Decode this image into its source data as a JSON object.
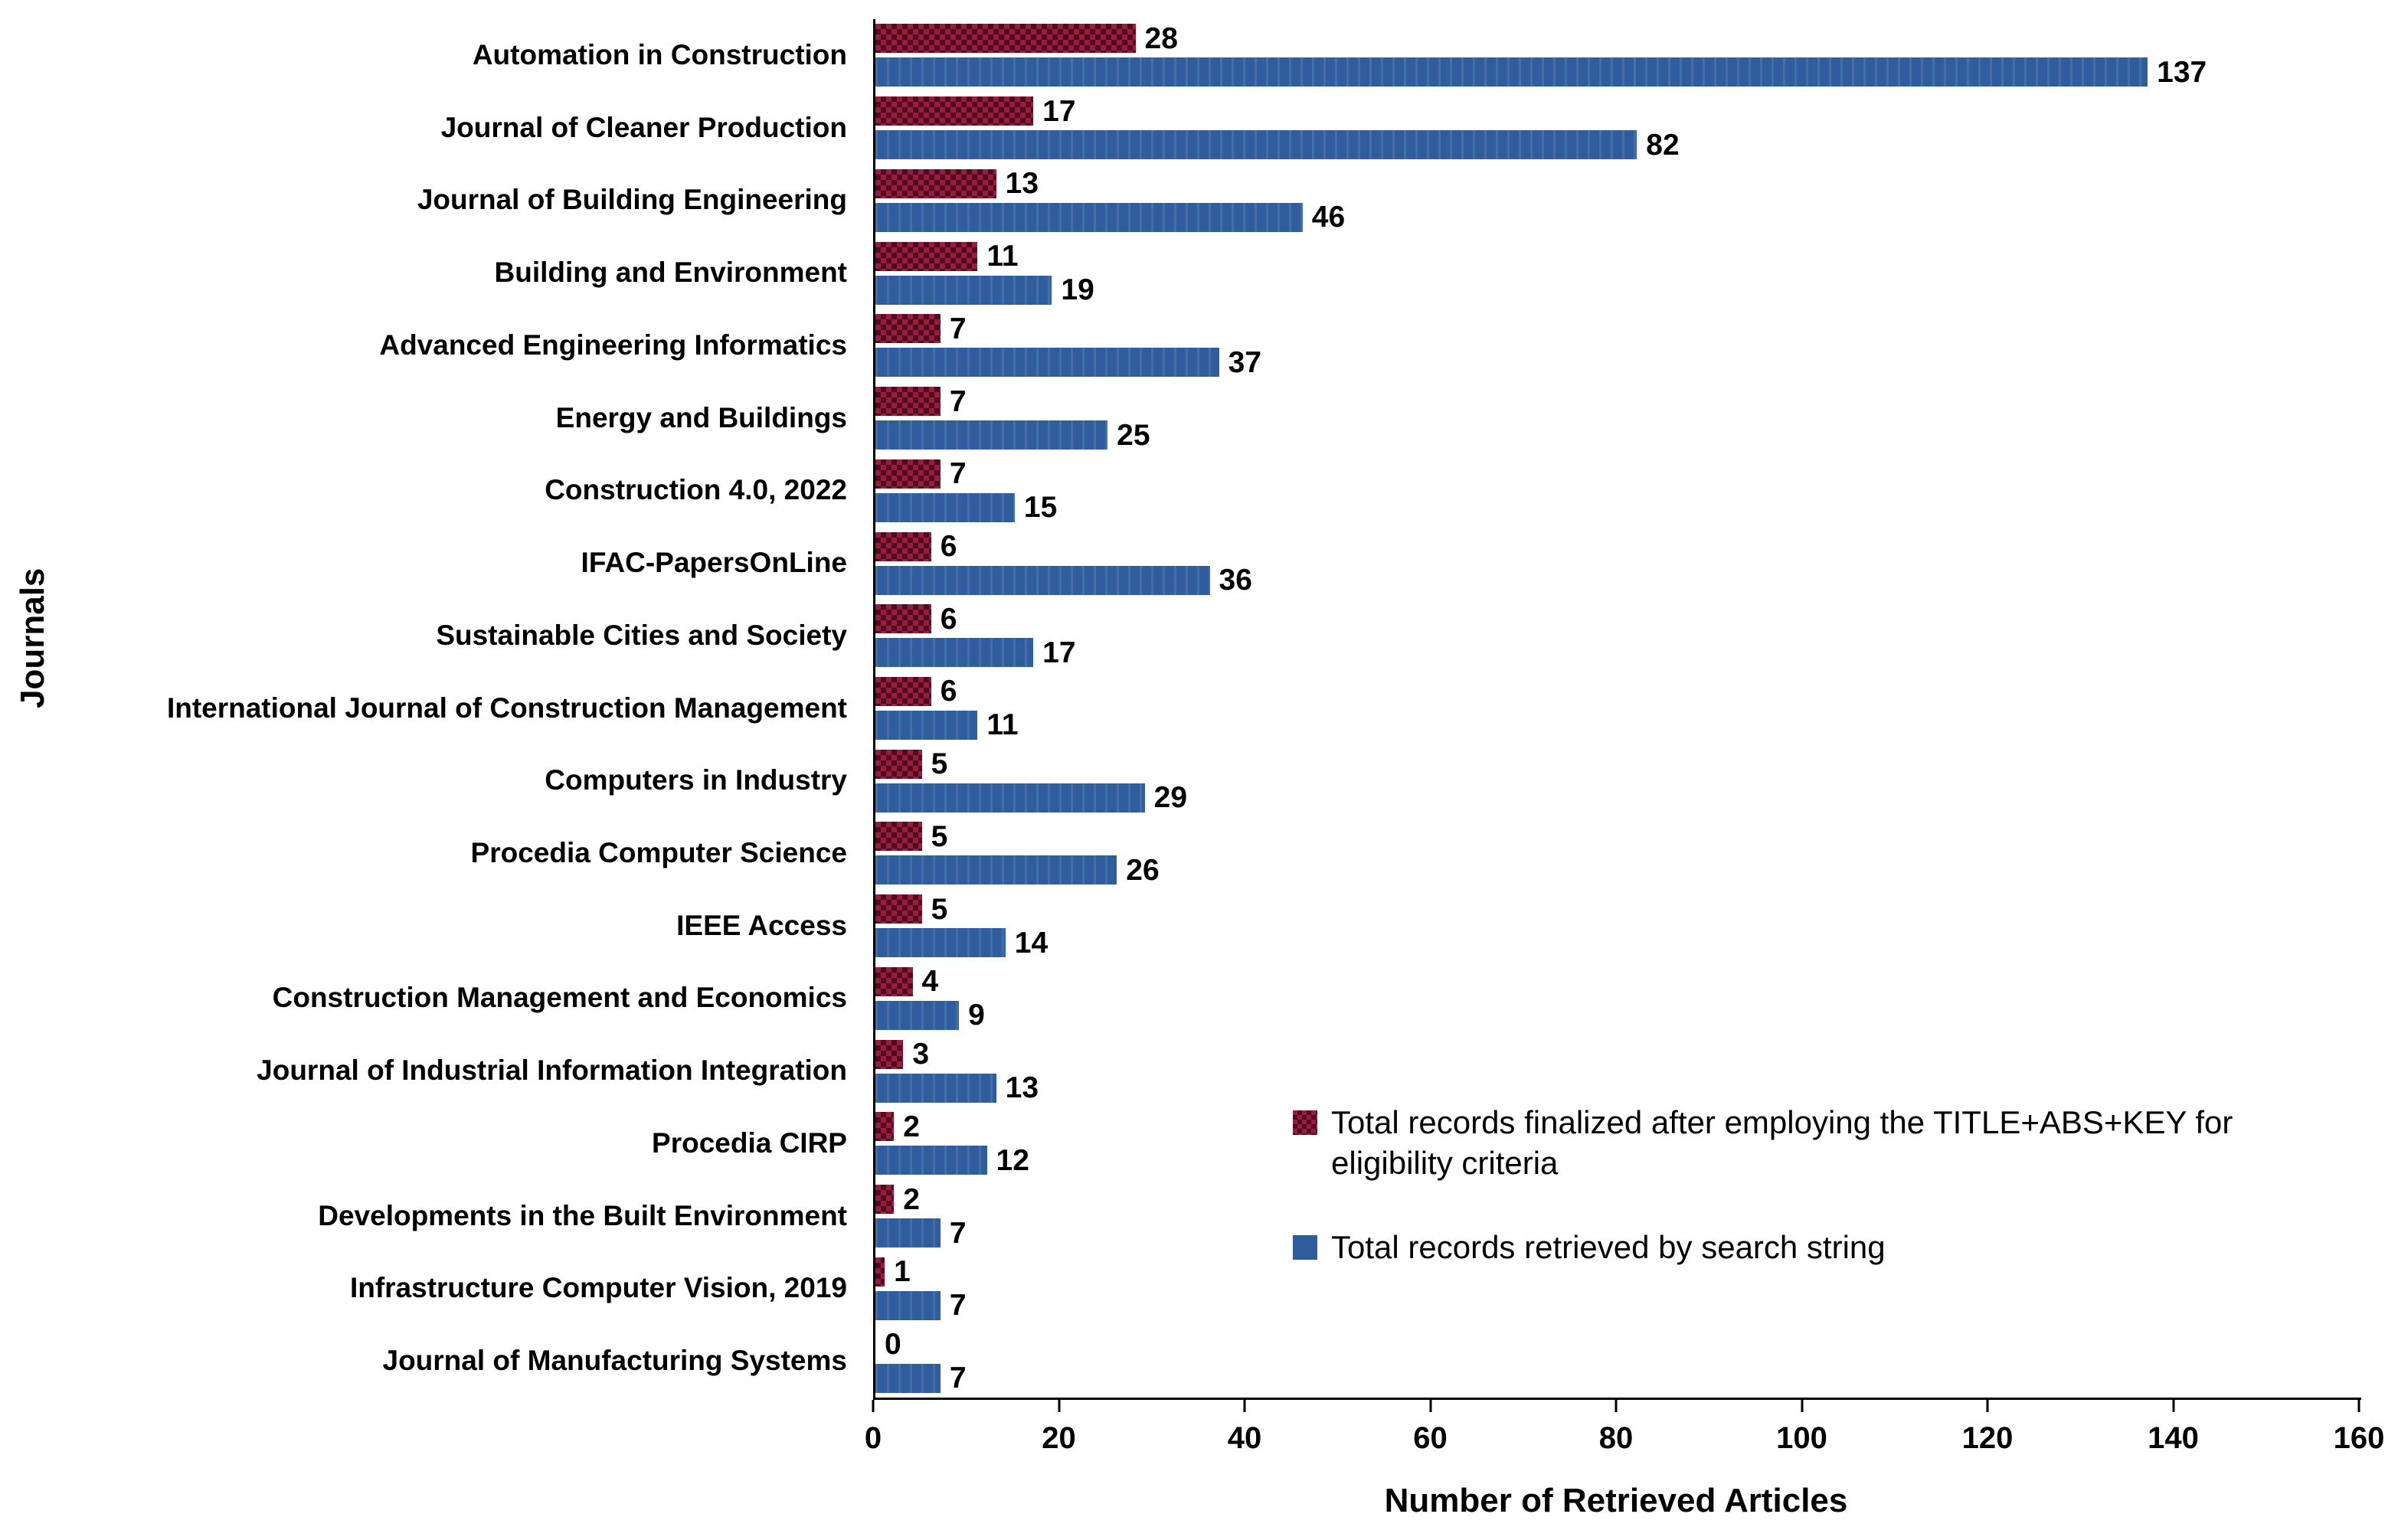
{
  "page": {
    "background": "#ffffff"
  },
  "chart_data": {
    "type": "bar",
    "orientation": "horizontal",
    "title": "",
    "xlabel": "Number of Retrieved Articles",
    "ylabel": "Journals",
    "xlim": [
      0,
      160
    ],
    "xticks": [
      0,
      20,
      40,
      60,
      80,
      100,
      120,
      140,
      160
    ],
    "grid": false,
    "legend_position": "inside-lower-right",
    "categories": [
      "Automation in Construction",
      "Journal of Cleaner Production",
      "Journal of Building Engineering",
      "Building and Environment",
      "Advanced Engineering Informatics",
      "Energy and Buildings",
      "Construction 4.0, 2022",
      "IFAC-PapersOnLine",
      "Sustainable Cities and Society",
      "International Journal of Construction Management",
      "Computers in Industry",
      "Procedia Computer Science",
      "IEEE Access",
      "Construction Management and Economics",
      "Journal of Industrial Information Integration",
      "Procedia CIRP",
      "Developments in the Built Environment",
      "Infrastructure Computer Vision, 2019",
      "Journal of Manufacturing Systems"
    ],
    "series": [
      {
        "name": "Total records finalized after employing the TITLE+ABS+KEY for eligibility criteria",
        "color": "#9B1B3C",
        "pattern": "checker",
        "values": [
          28,
          17,
          13,
          11,
          7,
          7,
          7,
          6,
          6,
          6,
          5,
          5,
          5,
          4,
          3,
          2,
          2,
          1,
          0
        ]
      },
      {
        "name": "Total records retrieved by search string",
        "color": "#2F5D9E",
        "pattern": "solid",
        "values": [
          137,
          82,
          46,
          19,
          37,
          25,
          15,
          36,
          17,
          11,
          29,
          26,
          14,
          9,
          13,
          12,
          7,
          7,
          7
        ]
      }
    ]
  }
}
